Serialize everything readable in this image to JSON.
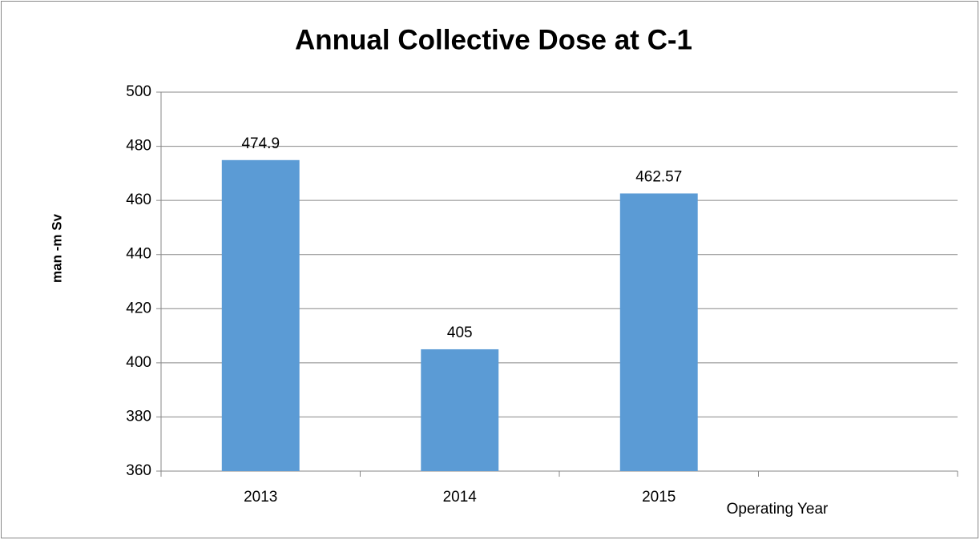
{
  "chart_data": {
    "type": "bar",
    "title": "Annual Collective Dose at C-1",
    "x_label": "Operating Year",
    "y_label": "man -m Sv",
    "categories": [
      "2013",
      "2014",
      "2015",
      null
    ],
    "values": [
      474.9,
      405,
      462.57,
      null
    ],
    "color": "#5b9bd5",
    "ylim": [
      360,
      500
    ],
    "yticks": [
      360,
      380,
      400,
      420,
      440,
      460,
      480,
      500
    ],
    "grid": true
  }
}
